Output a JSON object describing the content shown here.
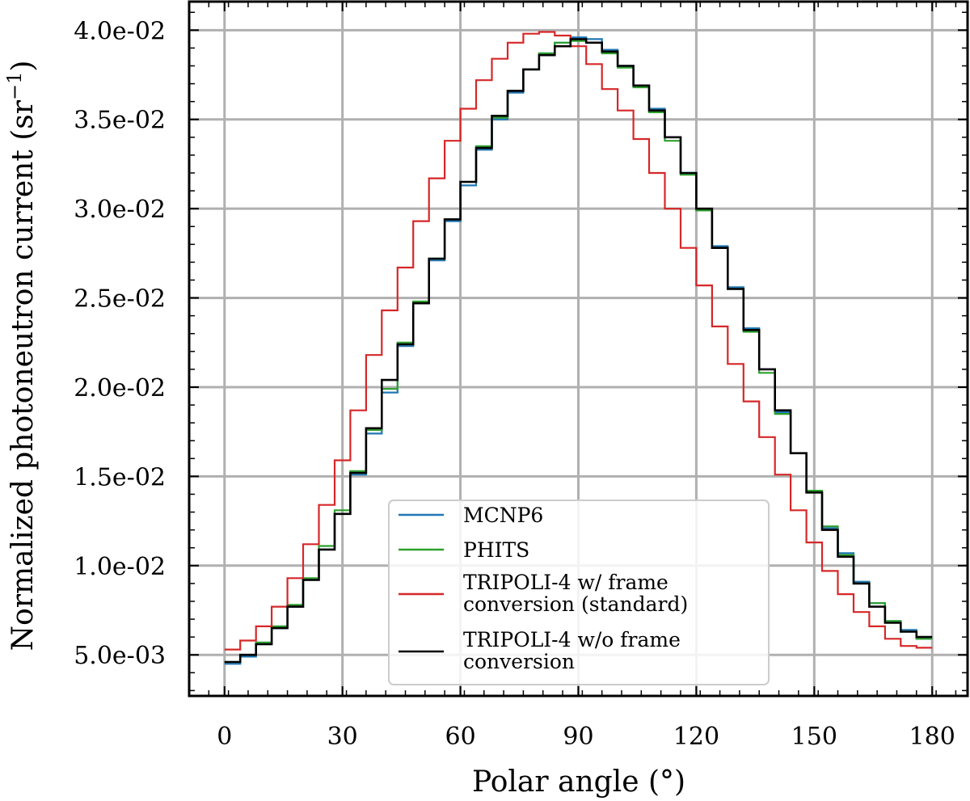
{
  "chart_data": {
    "type": "line",
    "step": true,
    "xlabel": "Polar angle (°)",
    "ylabel": "Normalized photoneutron current (sr",
    "ylabel_sup": "−1",
    "ylabel_close": ")",
    "xlim": [
      -9,
      189
    ],
    "ylim": [
      0.0027,
      0.0416
    ],
    "xticks": [
      0,
      30,
      60,
      90,
      120,
      150,
      180
    ],
    "xtick_labels": [
      "0",
      "30",
      "60",
      "90",
      "120",
      "150",
      "180"
    ],
    "yticks": [
      0.005,
      0.01,
      0.015,
      0.02,
      0.025,
      0.03,
      0.035,
      0.04
    ],
    "ytick_labels": [
      "5.0e-03",
      "1.0e-02",
      "1.5e-02",
      "2.0e-02",
      "2.5e-02",
      "3.0e-02",
      "3.5e-02",
      "4.0e-02"
    ],
    "grid": true,
    "legend_position": "bottom-center",
    "bin_edges": [
      0,
      4,
      8,
      12,
      16,
      20,
      24,
      28,
      32,
      36,
      40,
      44,
      48,
      52,
      56,
      60,
      64,
      68,
      72,
      76,
      80,
      84,
      88,
      92,
      96,
      100,
      104,
      108,
      112,
      116,
      120,
      124,
      128,
      132,
      136,
      140,
      144,
      148,
      152,
      156,
      160,
      164,
      168,
      172,
      176,
      180
    ],
    "series": [
      {
        "name": "MCNP6",
        "color": "#1f77b4",
        "values": [
          0.0045,
          0.0049,
          0.0056,
          0.0065,
          0.0077,
          0.0092,
          0.0109,
          0.0129,
          0.0151,
          0.0174,
          0.0197,
          0.0223,
          0.0247,
          0.0271,
          0.0293,
          0.0313,
          0.0333,
          0.035,
          0.0365,
          0.0378,
          0.0387,
          0.0393,
          0.0396,
          0.0395,
          0.0389,
          0.038,
          0.0369,
          0.0356,
          0.034,
          0.032,
          0.03,
          0.0279,
          0.0256,
          0.0233,
          0.021,
          0.0186,
          0.0163,
          0.0141,
          0.0121,
          0.0107,
          0.0091,
          0.0079,
          0.0069,
          0.0064,
          0.0059
        ]
      },
      {
        "name": "PHITS",
        "color": "#2ca02c",
        "values": [
          0.0046,
          0.005,
          0.0057,
          0.0066,
          0.0078,
          0.0093,
          0.0111,
          0.0131,
          0.0153,
          0.0176,
          0.0199,
          0.0225,
          0.0248,
          0.0272,
          0.0294,
          0.0315,
          0.0335,
          0.0351,
          0.0366,
          0.0378,
          0.0387,
          0.0393,
          0.0394,
          0.0393,
          0.0387,
          0.0379,
          0.0368,
          0.0354,
          0.0338,
          0.0319,
          0.0299,
          0.0278,
          0.0255,
          0.0231,
          0.0208,
          0.0185,
          0.0163,
          0.0142,
          0.0122,
          0.0106,
          0.009,
          0.0079,
          0.0069,
          0.0063,
          0.0059
        ]
      },
      {
        "name": "TRIPOLI-4 w/ frame conversion (standard)",
        "label_lines": [
          "TRIPOLI-4 w/ frame",
          "conversion (standard)"
        ],
        "color": "#d62728",
        "values": [
          0.0053,
          0.0058,
          0.0066,
          0.0077,
          0.0093,
          0.0112,
          0.0134,
          0.0159,
          0.0187,
          0.0218,
          0.0243,
          0.0267,
          0.0293,
          0.0317,
          0.0338,
          0.0356,
          0.0372,
          0.0384,
          0.0393,
          0.0398,
          0.0399,
          0.0397,
          0.0391,
          0.0381,
          0.0367,
          0.0355,
          0.0339,
          0.032,
          0.03,
          0.0278,
          0.0257,
          0.0234,
          0.0213,
          0.0192,
          0.0172,
          0.0151,
          0.0131,
          0.0113,
          0.0097,
          0.0084,
          0.0074,
          0.0066,
          0.0059,
          0.0055,
          0.0054
        ]
      },
      {
        "name": "TRIPOLI-4 w/o frame conversion",
        "label_lines": [
          "TRIPOLI-4 w/o frame",
          "conversion"
        ],
        "color": "#000000",
        "values": [
          0.0046,
          0.005,
          0.0056,
          0.0065,
          0.0077,
          0.0092,
          0.0109,
          0.0129,
          0.0152,
          0.0177,
          0.0204,
          0.0224,
          0.0247,
          0.0272,
          0.0294,
          0.0315,
          0.0334,
          0.0352,
          0.0366,
          0.0378,
          0.0386,
          0.0391,
          0.0395,
          0.0393,
          0.0388,
          0.038,
          0.0369,
          0.0355,
          0.034,
          0.032,
          0.03,
          0.0278,
          0.0255,
          0.0232,
          0.021,
          0.0187,
          0.0163,
          0.0141,
          0.012,
          0.0105,
          0.009,
          0.0077,
          0.0068,
          0.0063,
          0.006
        ]
      }
    ]
  }
}
